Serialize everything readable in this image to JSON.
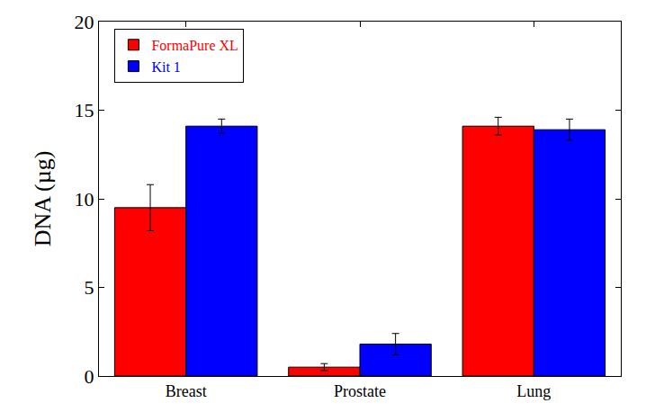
{
  "chart_data": {
    "type": "bar",
    "y_label": "DNA (µg)",
    "categories": [
      "Breast",
      "Prostate",
      "Lung"
    ],
    "series": [
      {
        "name": "FormaPure XL",
        "color": "#ff0000",
        "values": [
          9.5,
          0.5,
          14.1
        ],
        "errors": [
          1.3,
          0.2,
          0.5
        ]
      },
      {
        "name": "Kit 1",
        "color": "#0000ff",
        "values": [
          14.1,
          1.8,
          13.9
        ],
        "errors": [
          0.4,
          0.6,
          0.6
        ]
      }
    ],
    "ylim": [
      0,
      20
    ],
    "yticks": [
      0,
      5,
      10,
      15,
      20
    ],
    "grid": false,
    "legend": "top-left"
  }
}
